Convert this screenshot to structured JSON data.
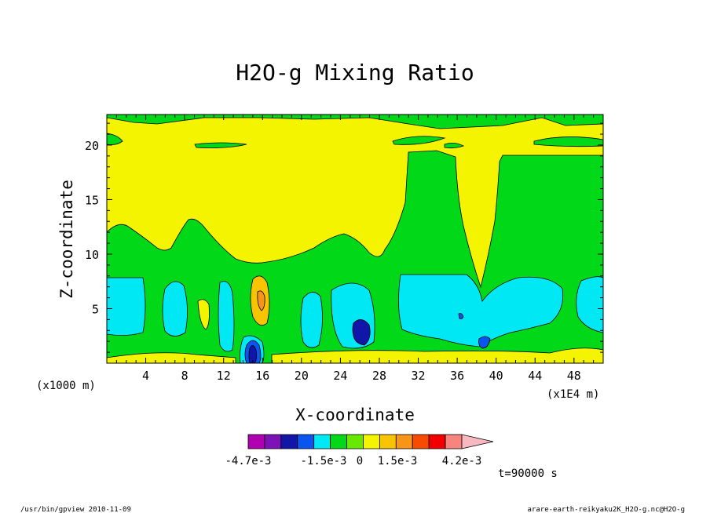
{
  "chart_data": {
    "type": "heatmap",
    "subtype": "filled-contour",
    "title": "H2O-g Mixing Ratio",
    "xlabel": "X-coordinate",
    "ylabel": "Z-coordinate",
    "x_unit_label": "(x1000 m)",
    "x_axis_annot": "(x1E4 m)",
    "xlim": [
      0,
      51
    ],
    "ylim": [
      0,
      22.8
    ],
    "x_ticks": [
      4,
      8,
      12,
      16,
      20,
      24,
      28,
      32,
      36,
      40,
      44,
      48
    ],
    "y_ticks": [
      5,
      10,
      15,
      20
    ],
    "colorbar": {
      "colors": [
        "#b100b1",
        "#7d12b7",
        "#1216a8",
        "#0a55f0",
        "#00e8f4",
        "#00d818",
        "#68e800",
        "#f4f400",
        "#f8c400",
        "#f89418",
        "#f84a00",
        "#f20000",
        "#f88480",
        "#f8b8c0"
      ],
      "labels": [
        "-4.7e-3",
        "-1.5e-3",
        "0",
        "1.5e-3",
        "4.2e-3"
      ],
      "label_positions_levels": [
        -0.0047,
        -0.0015,
        0,
        0.0015,
        0.0042
      ]
    },
    "regions": [
      {
        "color": "yellow",
        "desc": "upper atmosphere 13-22 km, most of domain"
      },
      {
        "color": "green",
        "desc": "mid layer ~2-13 km"
      },
      {
        "color": "cyan",
        "desc": "lower moist cells ~1-8 km"
      },
      {
        "color": "orange",
        "desc": "cell near x=15-16, z~4-8"
      },
      {
        "color": "blue",
        "desc": "core near x=15, z~0.5-2"
      },
      {
        "color": "blue",
        "desc": "core near x=26, z~2-4"
      }
    ],
    "time_label": "t=90000 s"
  },
  "footer": {
    "left": "/usr/bin/gpview  2010-11-09",
    "right": "arare-earth-reikyaku2K_H2O-g.nc@H2O-g"
  }
}
